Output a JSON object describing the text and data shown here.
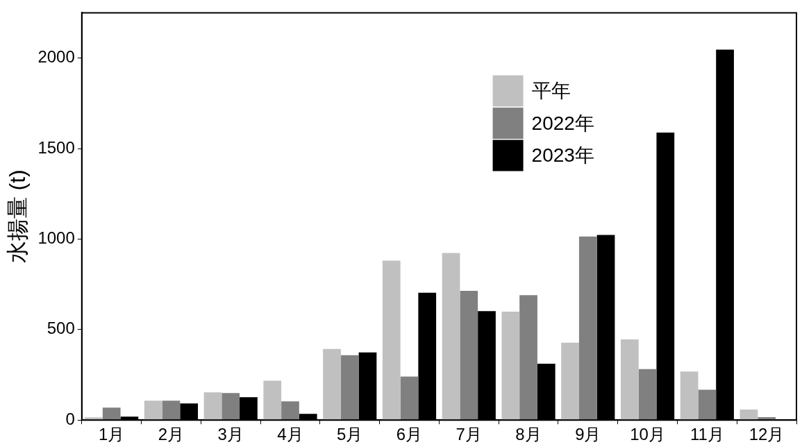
{
  "chart_data": {
    "type": "bar",
    "ylabel": "水揚量 (t)",
    "categories": [
      "1月",
      "2月",
      "3月",
      "4月",
      "5月",
      "6月",
      "7月",
      "8月",
      "9月",
      "10月",
      "11月",
      "12月"
    ],
    "series": [
      {
        "name": "平年",
        "color": "#c0c0c0",
        "values": [
          15,
          107,
          153,
          217,
          393,
          881,
          923,
          599,
          427,
          446,
          268,
          58
        ]
      },
      {
        "name": "2022年",
        "color": "#808080",
        "values": [
          69,
          107,
          149,
          103,
          358,
          240,
          714,
          690,
          1014,
          282,
          168,
          16
        ]
      },
      {
        "name": "2023年",
        "color": "#000000",
        "values": [
          19,
          92,
          126,
          34,
          374,
          703,
          602,
          311,
          1023,
          1588,
          2046,
          0
        ]
      }
    ],
    "ylim": [
      0,
      2250
    ],
    "yticks": [
      0,
      500,
      1000,
      1500,
      2000
    ],
    "grid": false,
    "legend": "top"
  }
}
